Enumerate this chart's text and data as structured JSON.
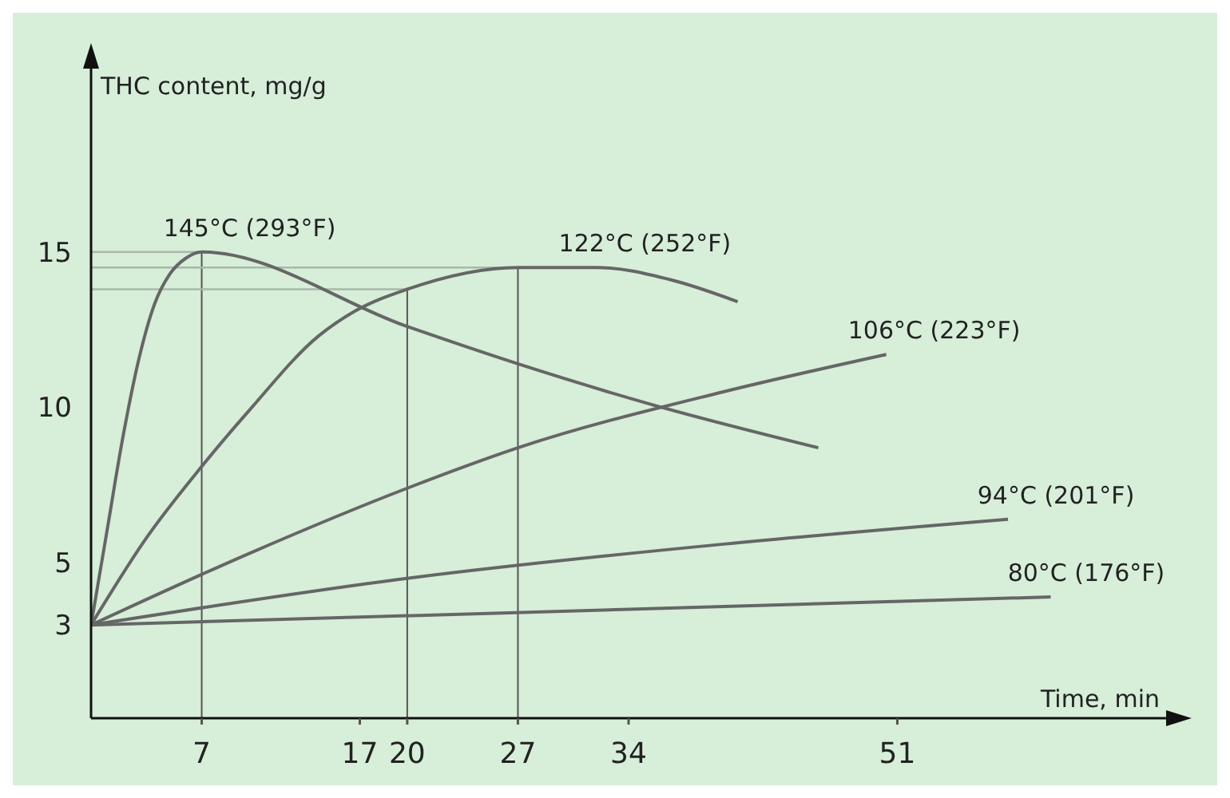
{
  "chart_data": {
    "type": "line",
    "xlabel": "Time, min",
    "ylabel": "THC content, mg/g",
    "xlim": [
      0,
      68
    ],
    "ylim": [
      0,
      21
    ],
    "xticks": [
      7,
      17,
      20,
      27,
      34,
      51
    ],
    "yticks": [
      3,
      5,
      10,
      15
    ],
    "marker": "none",
    "line_style": "solid",
    "ref_lines": [
      {
        "axis": "x",
        "value": 7,
        "color": "#555555"
      },
      {
        "axis": "x",
        "value": 20,
        "color": "#555555"
      },
      {
        "axis": "x",
        "value": 27,
        "color": "#555555"
      },
      {
        "axis": "y",
        "value": 15,
        "color": "#a9b8aa"
      },
      {
        "axis": "y",
        "value": 14.5,
        "color": "#a9b8aa"
      },
      {
        "axis": "y",
        "value": 13.8,
        "color": "#a9b8aa"
      }
    ],
    "series": [
      {
        "name": "145°C (293°F)",
        "color": "#666666",
        "x": [
          0,
          1,
          2,
          3,
          4,
          5,
          6,
          7,
          20,
          27,
          35.4,
          46
        ],
        "values": [
          3,
          6,
          9,
          11.5,
          13.3,
          14.3,
          14.8,
          15,
          12.6,
          11.4,
          10.1,
          8.7
        ]
      },
      {
        "name": "122°C (252°F)",
        "color": "#666666",
        "x": [
          0,
          3.5,
          7,
          10,
          14.4,
          16.7,
          20,
          27,
          32,
          36.7,
          40.9
        ],
        "values": [
          3,
          5.8,
          8.1,
          9.9,
          12.3,
          13.1,
          13.8,
          14.5,
          14.5,
          14.1,
          13.4
        ]
      },
      {
        "name": "106°C (223°F)",
        "color": "#666666",
        "x": [
          0,
          10,
          20,
          27,
          40,
          50.3
        ],
        "values": [
          3,
          5.3,
          7.4,
          8.7,
          10.5,
          11.7
        ]
      },
      {
        "name": "94°C (201°F)",
        "color": "#666666",
        "x": [
          0,
          20,
          40,
          58
        ],
        "values": [
          3,
          4.5,
          5.6,
          6.4
        ]
      },
      {
        "name": "80°C (176°F)",
        "color": "#666666",
        "x": [
          0,
          60.7
        ],
        "values": [
          3,
          3.9
        ]
      }
    ]
  }
}
